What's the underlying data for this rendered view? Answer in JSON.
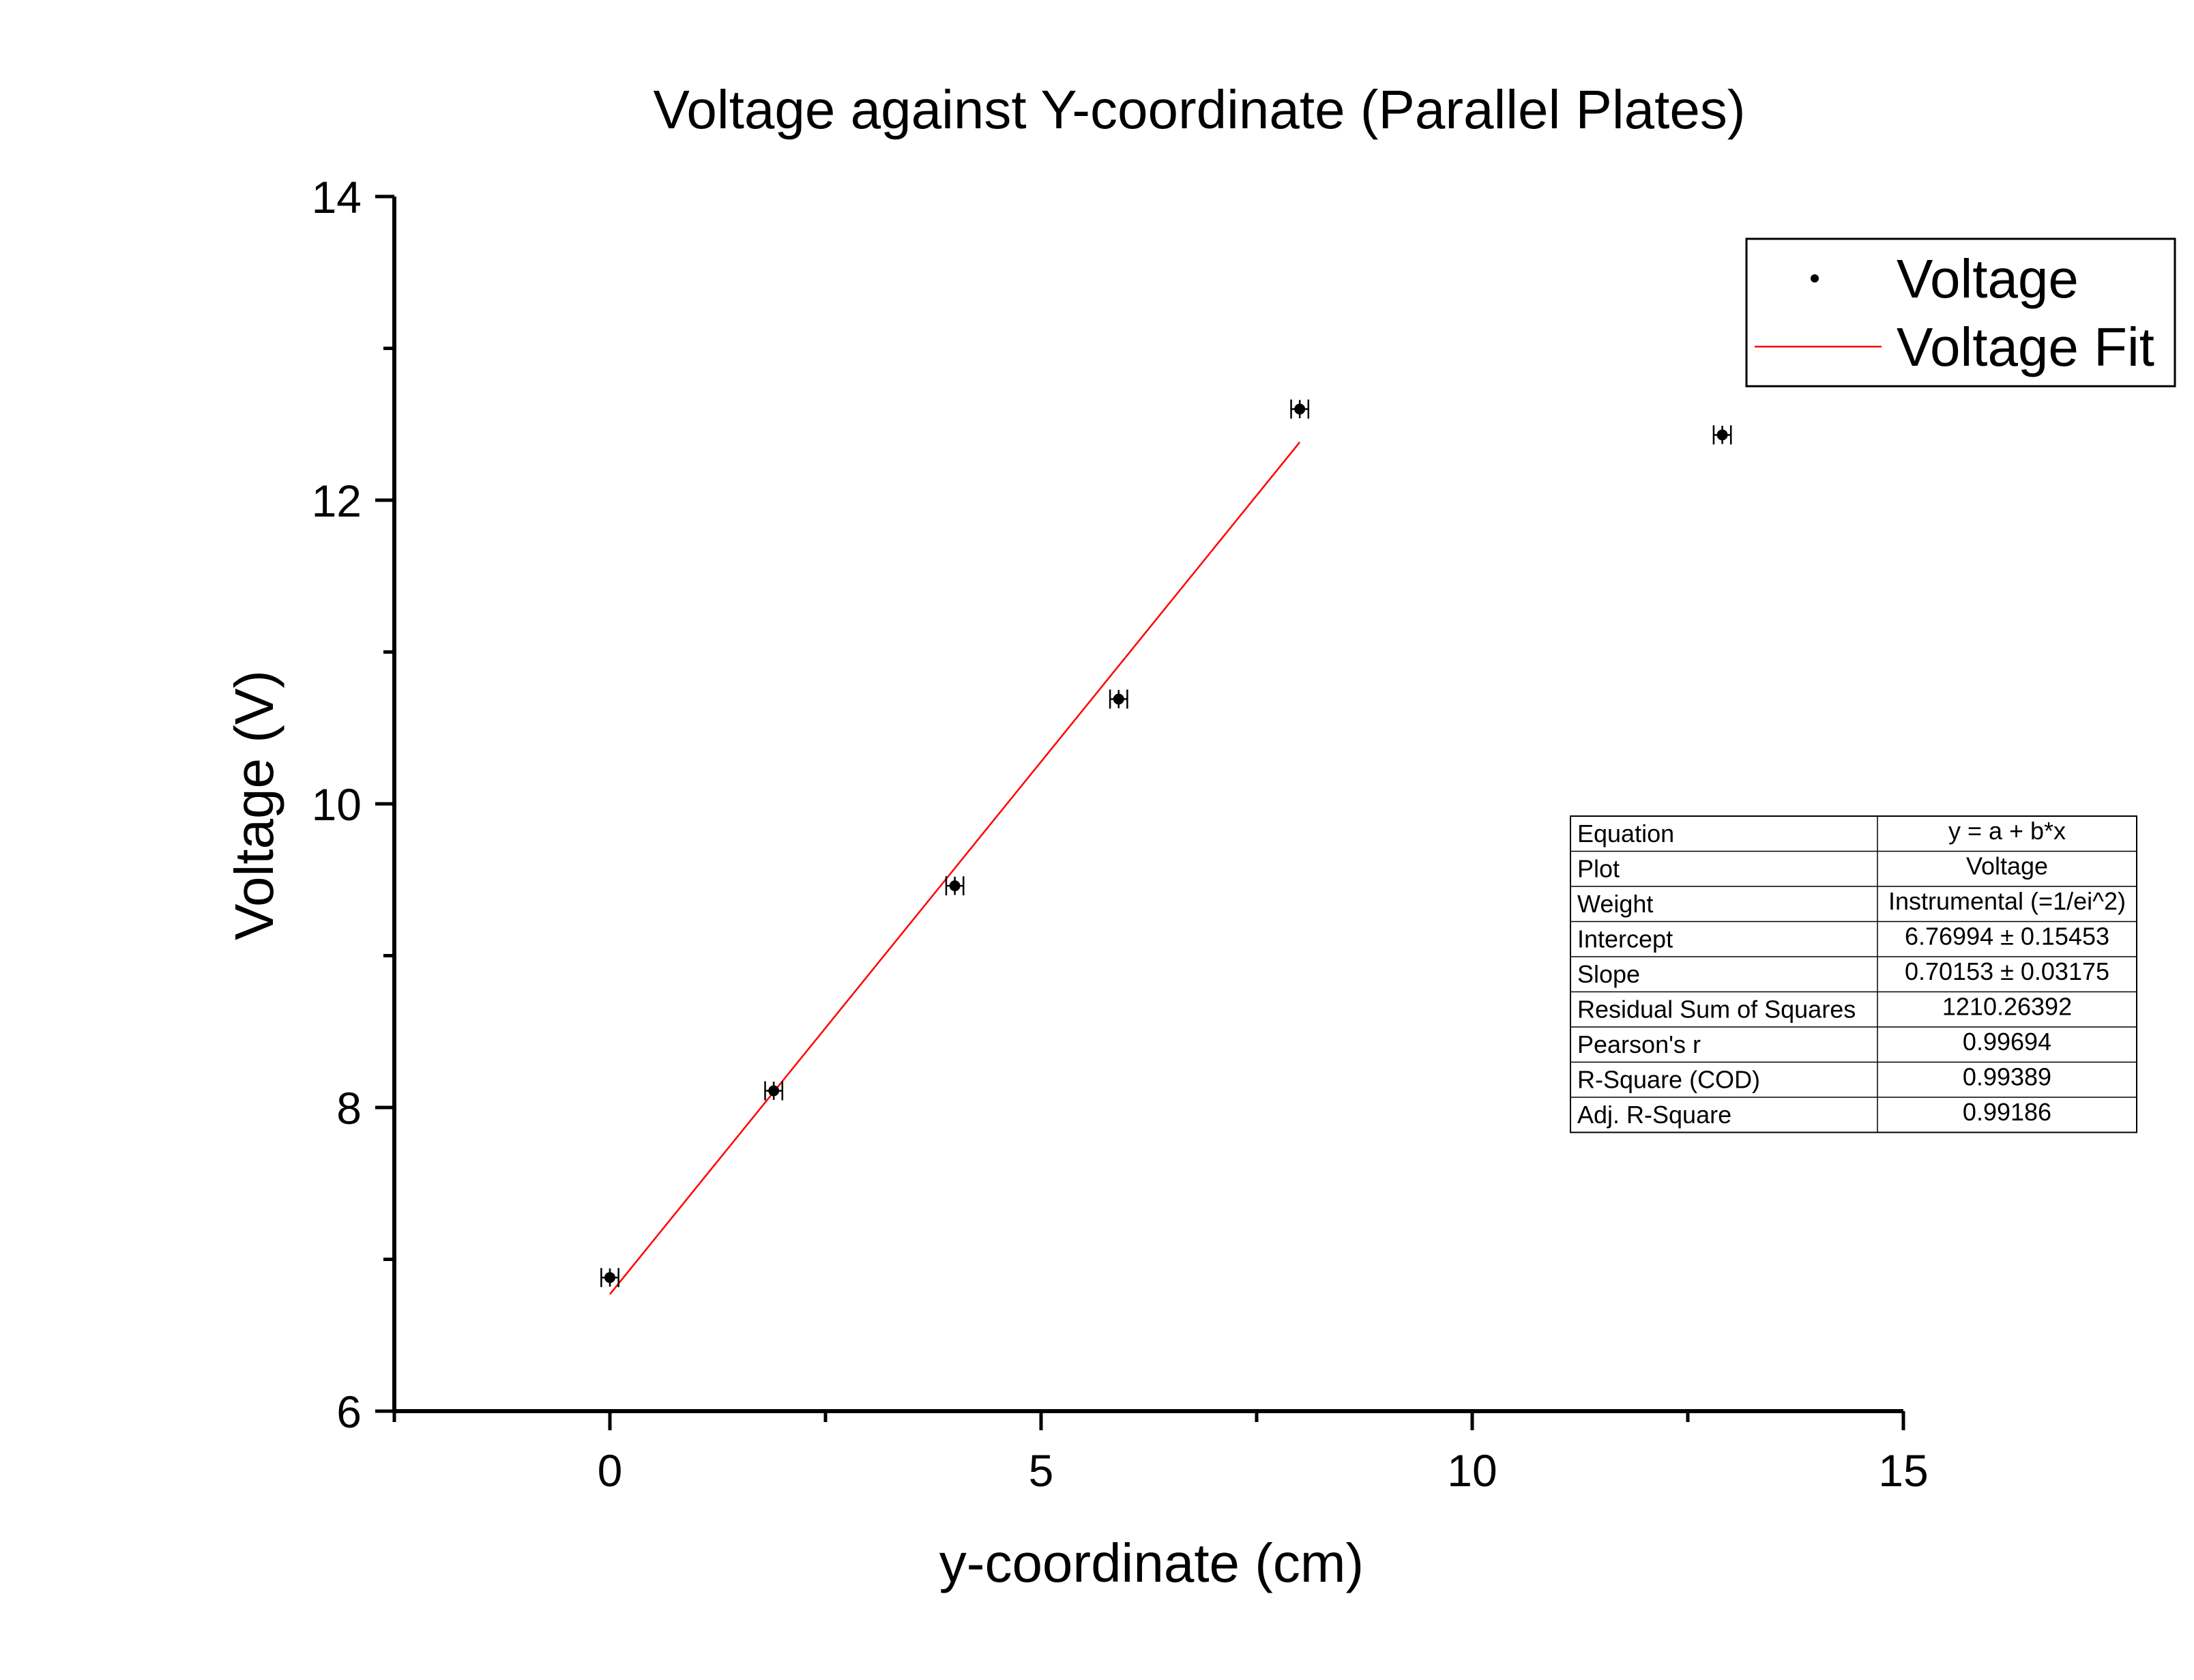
{
  "chart_data": {
    "type": "scatter",
    "title": "Voltage against Y-coordinate (Parallel Plates)",
    "xlabel": "y-coordinate (cm)",
    "ylabel": "Voltage (V)",
    "xlim": [
      -2.5,
      15
    ],
    "ylim": [
      6,
      14
    ],
    "xticks": [
      0,
      5,
      10,
      15
    ],
    "yticks": [
      6,
      8,
      10,
      12,
      14
    ],
    "xticks_minor": [
      -2.5,
      2.5,
      7.5,
      12.5
    ],
    "yticks_minor": [
      7,
      9,
      11,
      13
    ],
    "grid": false,
    "legend": {
      "placement": "top-right",
      "entries": [
        "Voltage",
        "Voltage Fit"
      ]
    },
    "series": [
      {
        "name": "Voltage",
        "kind": "scatter",
        "color": "#000000",
        "x": [
          0,
          1.9,
          4.0,
          5.9,
          8.0,
          12.9
        ],
        "y": [
          6.88,
          8.11,
          9.46,
          10.69,
          12.6,
          12.43
        ],
        "x_err": [
          0.1,
          0.1,
          0.1,
          0.1,
          0.1,
          0.1
        ],
        "y_err": [
          0.06,
          0.06,
          0.06,
          0.06,
          0.06,
          0.06
        ]
      },
      {
        "name": "Voltage Fit",
        "kind": "line",
        "color": "#ff0000",
        "x": [
          0,
          8.0
        ],
        "intercept": 6.76994,
        "slope": 0.70153
      }
    ],
    "stats_table": [
      [
        "Equation",
        "y = a + b*x"
      ],
      [
        "Plot",
        "Voltage"
      ],
      [
        "Weight",
        "Instrumental (=1/ei^2)"
      ],
      [
        "Intercept",
        "6.76994 ± 0.15453"
      ],
      [
        "Slope",
        "0.70153 ± 0.03175"
      ],
      [
        "Residual Sum of Squares",
        "1210.26392"
      ],
      [
        "Pearson's r",
        "0.99694"
      ],
      [
        "R-Square (COD)",
        "0.99389"
      ],
      [
        "Adj. R-Square",
        "0.99186"
      ]
    ]
  }
}
